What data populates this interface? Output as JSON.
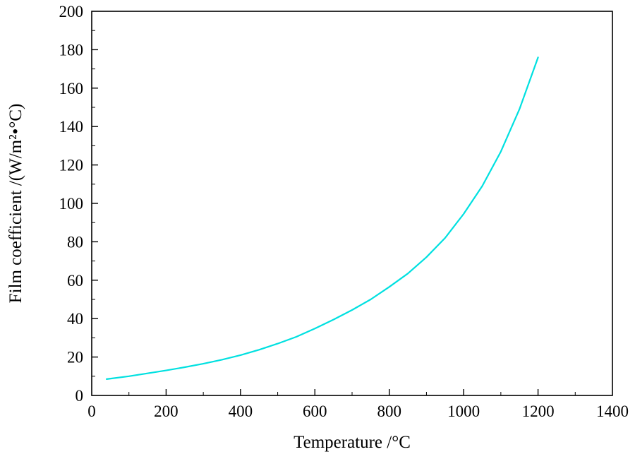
{
  "figure": {
    "background": "#ffffff",
    "frame_color": "#000000"
  },
  "chart_data": {
    "type": "line",
    "title": "",
    "xlabel": "Temperature /°C",
    "ylabel": "Film coefficient /(W/m²•°C)",
    "xlim": [
      0,
      1400
    ],
    "ylim": [
      0,
      200
    ],
    "xticks": [
      0,
      200,
      400,
      600,
      800,
      1000,
      1200,
      1400
    ],
    "yticks": [
      0,
      20,
      40,
      60,
      80,
      100,
      120,
      140,
      160,
      180,
      200
    ],
    "xtick_step": 200,
    "ytick_step": 20,
    "xminor_step": 100,
    "yminor_step": 10,
    "grid": false,
    "legend": "none",
    "series": [
      {
        "name": "film-coefficient-curve",
        "color": "#00e0e0",
        "line_width": 2.2,
        "x": [
          40,
          100,
          150,
          200,
          250,
          300,
          350,
          400,
          450,
          500,
          550,
          600,
          650,
          700,
          750,
          800,
          850,
          900,
          950,
          1000,
          1050,
          1100,
          1150,
          1200
        ],
        "y": [
          8.5,
          10,
          11.5,
          13,
          14.7,
          16.5,
          18.6,
          21,
          23.8,
          27,
          30.5,
          34.8,
          39.5,
          44.5,
          50,
          56.5,
          63.5,
          72,
          82,
          94.5,
          109,
          127,
          149,
          176
        ]
      }
    ]
  }
}
